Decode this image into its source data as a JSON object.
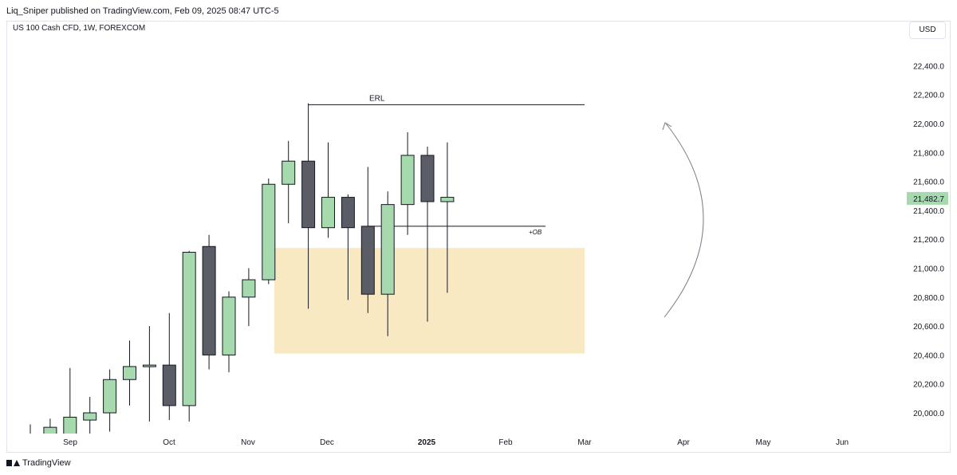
{
  "header": {
    "published": "Liq_Sniper published on TradingView.com, Feb 09, 2025 08:47 UTC-5"
  },
  "symbol": {
    "label": "US 100 Cash CFD, 1W, FOREXCOM"
  },
  "currency": {
    "label": "USD"
  },
  "footer": {
    "brand": "TradingView"
  },
  "colors": {
    "bull": "#a6d9ad",
    "bear": "#5b5d66",
    "zone": "#f8e9c2",
    "price_badge": "#a6d9ad",
    "axis_text": "#131722"
  },
  "chart_data": {
    "type": "candlestick",
    "x_tick_labels": [
      "Sep",
      "Oct",
      "Nov",
      "Dec",
      "2025",
      "Feb",
      "Mar",
      "Apr",
      "May",
      "Jun"
    ],
    "y_tick_labels": [
      "22,400.0",
      "22,200.0",
      "22,000.0",
      "21,800.0",
      "21,600.0",
      "21,400.0",
      "21,200.0",
      "21,000.0",
      "20,800.0",
      "20,600.0",
      "20,400.0",
      "20,200.0",
      "20,000.0"
    ],
    "y_ticks": [
      22400,
      22200,
      22000,
      21800,
      21600,
      21400,
      21200,
      21000,
      20800,
      20600,
      20400,
      20200,
      20000
    ],
    "ylim": [
      19850,
      22600
    ],
    "current_price": 21482.7,
    "current_price_label": "21,482.7",
    "candles": [
      {
        "o": 19740,
        "h": 19920,
        "l": 19760,
        "c": 19840
      },
      {
        "o": 19780,
        "h": 19960,
        "l": 19600,
        "c": 19900
      },
      {
        "o": 19850,
        "h": 20310,
        "l": 19780,
        "c": 19970
      },
      {
        "o": 19950,
        "h": 20110,
        "l": 19850,
        "c": 20000
      },
      {
        "o": 20000,
        "h": 20300,
        "l": 19870,
        "c": 20230
      },
      {
        "o": 20230,
        "h": 20500,
        "l": 20050,
        "c": 20320
      },
      {
        "o": 20320,
        "h": 20600,
        "l": 19940,
        "c": 20330
      },
      {
        "o": 20330,
        "h": 20690,
        "l": 19950,
        "c": 20050
      },
      {
        "o": 20050,
        "h": 21120,
        "l": 19940,
        "c": 21110
      },
      {
        "o": 21150,
        "h": 21230,
        "l": 20300,
        "c": 20400
      },
      {
        "o": 20400,
        "h": 20840,
        "l": 20280,
        "c": 20800
      },
      {
        "o": 20800,
        "h": 21000,
        "l": 20600,
        "c": 20920
      },
      {
        "o": 20920,
        "h": 21620,
        "l": 20890,
        "c": 21580
      },
      {
        "o": 21580,
        "h": 21880,
        "l": 21310,
        "c": 21740
      },
      {
        "o": 21740,
        "h": 22140,
        "l": 20720,
        "c": 21280
      },
      {
        "o": 21280,
        "h": 21870,
        "l": 21210,
        "c": 21490
      },
      {
        "o": 21490,
        "h": 21510,
        "l": 20780,
        "c": 21280
      },
      {
        "o": 21290,
        "h": 21700,
        "l": 20690,
        "c": 20820
      },
      {
        "o": 20820,
        "h": 21530,
        "l": 20530,
        "c": 21440
      },
      {
        "o": 21440,
        "h": 21940,
        "l": 21230,
        "c": 21780
      },
      {
        "o": 21780,
        "h": 21840,
        "l": 20630,
        "c": 21460
      },
      {
        "o": 21460,
        "h": 21870,
        "l": 20830,
        "c": 21490
      }
    ],
    "annotations": {
      "erl_label": "ERL",
      "erl_level": 22130,
      "ob_label": "+OB",
      "ob_level": 21290,
      "zone_top": 21140,
      "zone_bottom": 20410
    }
  }
}
